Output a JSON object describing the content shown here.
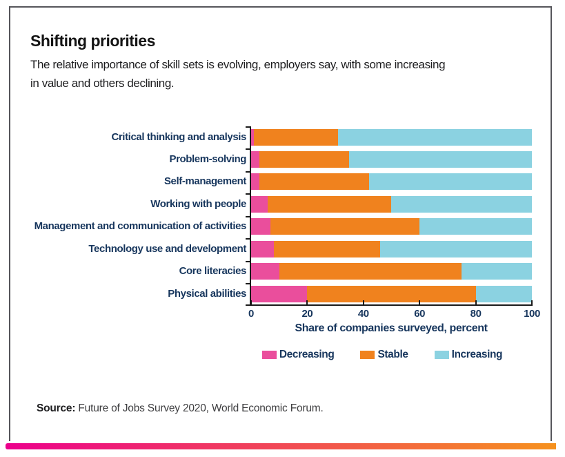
{
  "panel": {
    "title": "Shifting priorities",
    "subtitle_line1": "The relative importance of skill sets is evolving, employers say, with some increasing",
    "subtitle_line2": "in value and others declining.",
    "source_label": "Source:",
    "source_text": " Future of Jobs Survey 2020, World Economic Forum."
  },
  "colors": {
    "decreasing": "#ea4e9c",
    "stable": "#f0821e",
    "increasing": "#8bd2e1",
    "label_text": "#17365d",
    "axis": "#1a1a1a",
    "gradient_left": "#ec008c",
    "gradient_right": "#f6921e"
  },
  "chart_data": {
    "type": "bar",
    "orientation": "horizontal",
    "stacked": true,
    "title": "Shifting priorities",
    "xlabel": "Share of companies surveyed, percent",
    "ylabel": "",
    "xlim": [
      0,
      100
    ],
    "x_ticks": [
      0,
      20,
      40,
      60,
      80,
      100
    ],
    "grid": false,
    "legend_position": "bottom",
    "categories": [
      "Critical thinking and analysis",
      "Problem-solving",
      "Self-management",
      "Working with people",
      "Management and communication of activities",
      "Technology use and development",
      "Core literacies",
      "Physical abilities"
    ],
    "series": [
      {
        "name": "Decreasing",
        "color_key": "decreasing",
        "values": [
          1,
          3,
          3,
          6,
          7,
          8,
          10,
          20
        ]
      },
      {
        "name": "Stable",
        "color_key": "stable",
        "values": [
          30,
          32,
          39,
          44,
          53,
          38,
          65,
          60
        ]
      },
      {
        "name": "Increasing",
        "color_key": "increasing",
        "values": [
          69,
          65,
          58,
          50,
          40,
          54,
          25,
          20
        ]
      }
    ]
  }
}
